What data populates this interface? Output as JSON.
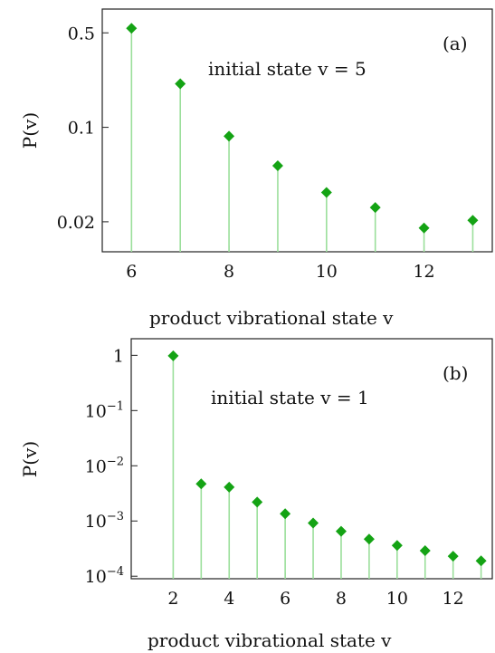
{
  "colors": {
    "marker": "#14a314",
    "stem": "#9bdf9b",
    "axis": "#222222"
  },
  "chart_data": [
    {
      "type": "scatter",
      "panel_label": "(a)",
      "annotation": "initial state v = 5",
      "xlabel": "product vibrational state v",
      "ylabel": "P(v)",
      "yscale": "log",
      "xlim": [
        5.4,
        13.4
      ],
      "ylim": [
        0.012,
        0.75
      ],
      "xticks": [
        6,
        8,
        10,
        12
      ],
      "xtick_labels": [
        "6",
        "8",
        "10",
        "12"
      ],
      "yticks": [
        0.5,
        0.1,
        0.02
      ],
      "ytick_labels": [
        "0.5",
        "0.1",
        "0.02"
      ],
      "x": [
        6,
        7,
        8,
        9,
        10,
        11,
        12,
        13
      ],
      "y": [
        0.54,
        0.21,
        0.086,
        0.052,
        0.033,
        0.0255,
        0.018,
        0.0205
      ]
    },
    {
      "type": "scatter",
      "panel_label": "(b)",
      "annotation": "initial state v = 1",
      "xlabel": "product vibrational state v",
      "ylabel": "P(v)",
      "yscale": "log",
      "xlim": [
        0.5,
        13.4
      ],
      "ylim": [
        9e-05,
        2
      ],
      "xticks": [
        2,
        4,
        6,
        8,
        10,
        12
      ],
      "xtick_labels": [
        "2",
        "4",
        "6",
        "8",
        "10",
        "12"
      ],
      "yticks": [
        1,
        0.1,
        0.01,
        0.001,
        0.0001
      ],
      "ytick_labels": [
        "1",
        "10−1",
        "10−2",
        "10−3",
        "10−4"
      ],
      "x": [
        2,
        3,
        4,
        5,
        6,
        7,
        8,
        9,
        10,
        11,
        12,
        13
      ],
      "y": [
        0.98,
        0.0047,
        0.0041,
        0.0022,
        0.00135,
        0.00092,
        0.00065,
        0.00047,
        0.00036,
        0.00029,
        0.00023,
        0.00019
      ]
    }
  ]
}
